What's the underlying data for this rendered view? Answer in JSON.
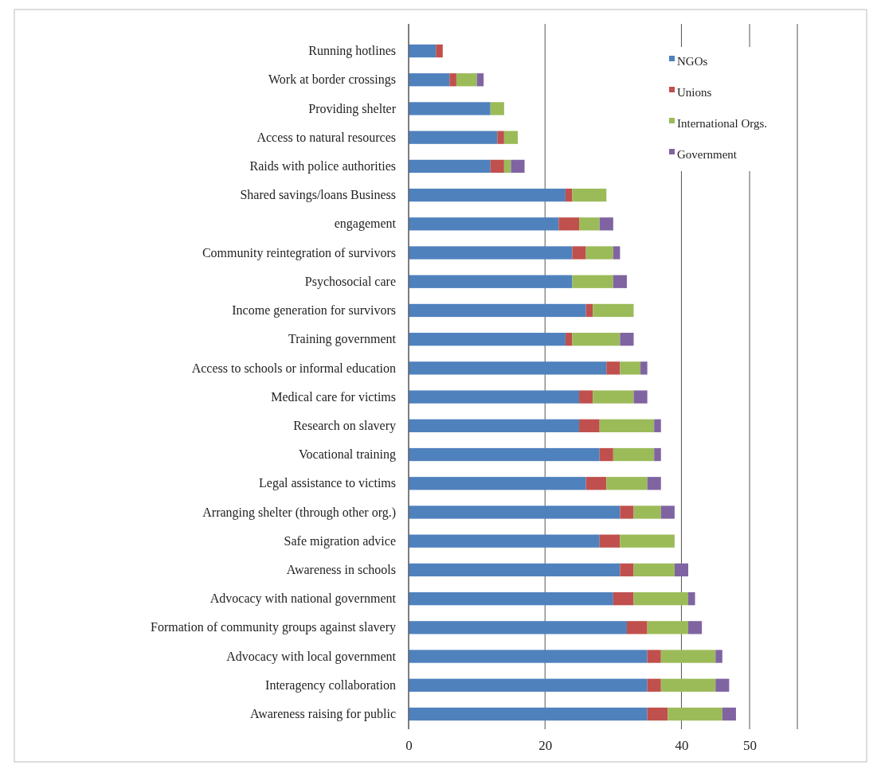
{
  "chart_data": {
    "type": "bar",
    "orientation": "horizontal",
    "stacked": true,
    "categories": [
      "Running hotlines",
      "Work at border crossings",
      "Providing shelter",
      "Access to natural resources",
      "Raids with police authorities",
      "Shared savings/loans Business",
      "engagement",
      "Community reintegration of survivors",
      "Psychosocial care",
      "Income generation for survivors",
      "Training government",
      "Access to schools or informal education",
      "Medical care for victims",
      "Research on slavery",
      "Vocational training",
      "Legal assistance to victims",
      "Arranging shelter (through other org.)",
      "Safe migration advice",
      "Awareness in schools",
      "Advocacy with national government",
      "Formation of community groups against slavery",
      "Advocacy with local government",
      "Interagency collaboration",
      "Awareness raising for public"
    ],
    "series": [
      {
        "name": "NGOs",
        "color": "#4f81bd",
        "values": [
          4,
          6,
          12,
          13,
          12,
          23,
          22,
          24,
          24,
          26,
          23,
          29,
          25,
          25,
          28,
          26,
          31,
          28,
          31,
          30,
          32,
          35,
          35,
          35
        ]
      },
      {
        "name": "Unions",
        "color": "#c0504d",
        "values": [
          1,
          1,
          0,
          1,
          2,
          1,
          3,
          2,
          0,
          1,
          1,
          2,
          2,
          3,
          2,
          3,
          2,
          3,
          2,
          3,
          3,
          2,
          2,
          3
        ]
      },
      {
        "name": "International Orgs.",
        "color": "#9bbb59",
        "values": [
          0,
          3,
          2,
          2,
          1,
          5,
          3,
          4,
          6,
          6,
          7,
          3,
          6,
          8,
          6,
          6,
          4,
          8,
          6,
          8,
          6,
          8,
          8,
          8
        ]
      },
      {
        "name": "Government",
        "color": "#8064a2",
        "values": [
          0,
          1,
          0,
          0,
          2,
          0,
          2,
          1,
          2,
          0,
          2,
          1,
          2,
          1,
          1,
          2,
          2,
          0,
          2,
          1,
          2,
          1,
          2,
          2
        ]
      }
    ],
    "xlim": [
      0,
      57
    ],
    "xticks": [
      0,
      20,
      40,
      50
    ],
    "grid": "x",
    "legend": "top right"
  }
}
